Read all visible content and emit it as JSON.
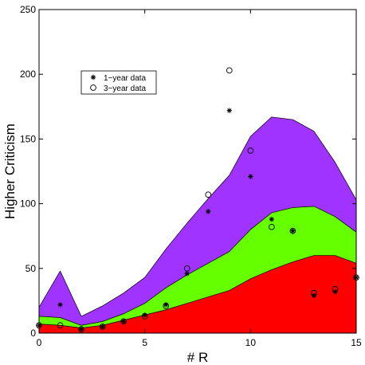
{
  "chart_data": {
    "type": "area",
    "xlabel": "# R",
    "ylabel": "Higher Criticism",
    "xlim": [
      0,
      15
    ],
    "ylim": [
      0,
      250
    ],
    "xticks": [
      0,
      5,
      10,
      15
    ],
    "yticks": [
      0,
      50,
      100,
      150,
      200,
      250
    ],
    "grid": false,
    "legend_placement": "upper-left",
    "bands": [
      {
        "color": "#ff0000",
        "x": [
          0,
          1,
          2,
          3,
          4,
          5,
          6,
          7,
          8,
          9,
          10,
          11,
          12,
          13,
          14,
          15
        ],
        "y": [
          7,
          6,
          4,
          6,
          10,
          14,
          18,
          23,
          28,
          33,
          42,
          49,
          55,
          60,
          60,
          54
        ]
      },
      {
        "color": "#66ff00",
        "x": [
          0,
          1,
          2,
          3,
          4,
          5,
          6,
          7,
          8,
          9,
          10,
          11,
          12,
          13,
          14,
          15
        ],
        "y": [
          13,
          12,
          6,
          9,
          15,
          23,
          35,
          45,
          54,
          63,
          80,
          93,
          97,
          98,
          90,
          78
        ]
      },
      {
        "color": "#a033ff",
        "x": [
          0,
          1,
          2,
          3,
          4,
          5,
          6,
          7,
          8,
          9,
          10,
          11,
          12,
          13,
          14,
          15
        ],
        "y": [
          20,
          48,
          13,
          21,
          31,
          43,
          65,
          85,
          104,
          122,
          152,
          167,
          165,
          156,
          132,
          103
        ]
      }
    ],
    "series": [
      {
        "name": "1−year data",
        "marker": "*",
        "x": [
          0,
          1,
          2,
          3,
          4,
          5,
          6,
          7,
          8,
          9,
          10,
          11,
          12,
          13,
          14,
          15
        ],
        "y": [
          6,
          22,
          3,
          5,
          9,
          14,
          22,
          46,
          94,
          172,
          121,
          88,
          79,
          29,
          32,
          43
        ]
      },
      {
        "name": "3−year data",
        "marker": "o",
        "x": [
          0,
          1,
          2,
          3,
          4,
          5,
          6,
          7,
          8,
          9,
          10,
          11,
          12,
          13,
          14,
          15
        ],
        "y": [
          6,
          6,
          3,
          5,
          9,
          13,
          21,
          50,
          107,
          203,
          141,
          82,
          79,
          31,
          34,
          43
        ]
      }
    ]
  }
}
